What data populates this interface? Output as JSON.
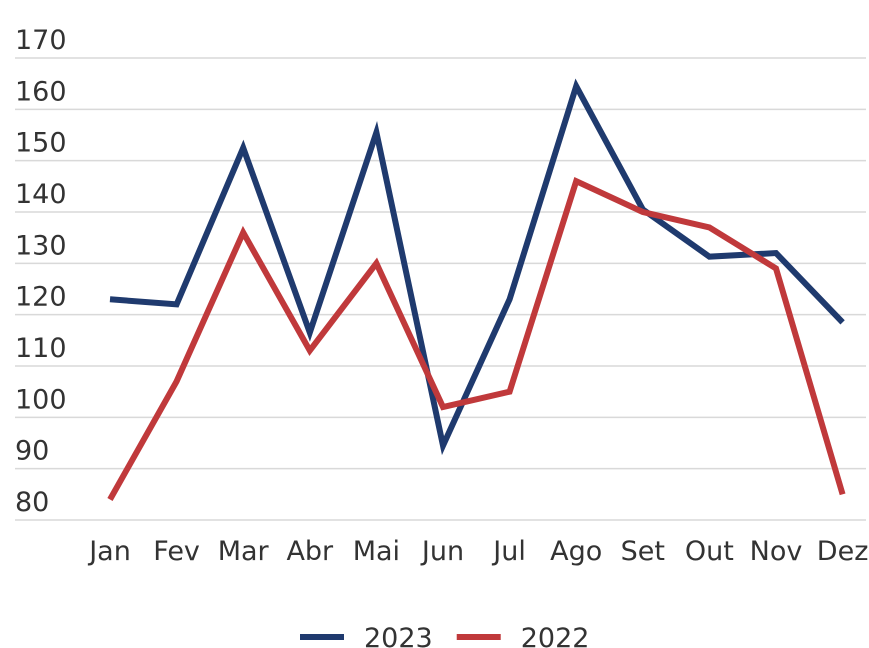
{
  "chart_data": {
    "type": "line",
    "categories": [
      "Jan",
      "Fev",
      "Mar",
      "Abr",
      "Mai",
      "Jun",
      "Jul",
      "Ago",
      "Set",
      "Out",
      "Nov",
      "Dez"
    ],
    "series": [
      {
        "name": "2023",
        "color": "#1f3a6e",
        "values": [
          123,
          122,
          152.5,
          116.5,
          155.5,
          94.5,
          123,
          164.5,
          140.5,
          131.3,
          132,
          118.5
        ]
      },
      {
        "name": "2022",
        "color": "#c0393b",
        "values": [
          84,
          107,
          136,
          113,
          130,
          102,
          105,
          146,
          140,
          137,
          129,
          85
        ]
      }
    ],
    "ylim": [
      80,
      170
    ],
    "yticks": [
      80,
      90,
      100,
      110,
      120,
      130,
      140,
      150,
      160,
      170
    ],
    "grid": true,
    "legend": "bottom"
  }
}
